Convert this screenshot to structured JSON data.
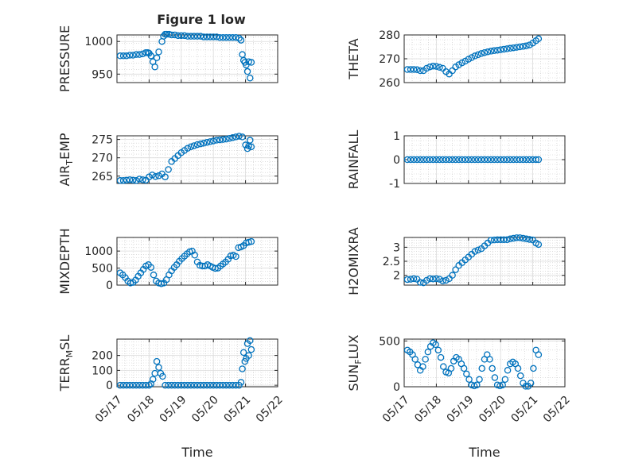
{
  "title": "Figure 1 low",
  "colors": {
    "marker": "#0072BD",
    "axis": "#262626",
    "grid": "#c8c8c8"
  },
  "chart_data": [
    {
      "type": "scatter",
      "panel": "left-1",
      "ylabel": "PRESSURE",
      "ylim": [
        937,
        1010
      ],
      "yticks": [
        950,
        1000
      ],
      "ytick_labels": [
        "950",
        "1000"
      ],
      "xlim": [
        0,
        5
      ],
      "show_xticklabels": false,
      "xlabel": "",
      "grid": true,
      "x": [
        0.1,
        0.2,
        0.3,
        0.4,
        0.5,
        0.6,
        0.7,
        0.8,
        0.9,
        0.96,
        1.0,
        1.06,
        1.12,
        1.18,
        1.24,
        1.3,
        1.4,
        1.45,
        1.5,
        1.55,
        1.62,
        1.7,
        1.8,
        1.9,
        2.0,
        2.1,
        2.2,
        2.3,
        2.4,
        2.5,
        2.6,
        2.7,
        2.8,
        2.9,
        3.0,
        3.1,
        3.2,
        3.3,
        3.4,
        3.5,
        3.6,
        3.7,
        3.8,
        3.86,
        3.9,
        3.94,
        3.98,
        4.02,
        4.06,
        4.1,
        4.14,
        4.18
      ],
      "y": [
        978,
        978,
        978,
        979,
        979,
        980,
        980,
        981,
        983,
        983,
        982,
        978,
        969,
        961,
        975,
        984,
        1000,
        1008,
        1011,
        1011,
        1011,
        1010,
        1010,
        1009,
        1009,
        1009,
        1008,
        1008,
        1008,
        1008,
        1008,
        1007,
        1007,
        1007,
        1007,
        1007,
        1006,
        1006,
        1006,
        1006,
        1006,
        1006,
        1005,
        1002,
        980,
        971,
        968,
        964,
        954,
        969,
        944,
        968
      ]
    },
    {
      "type": "scatter",
      "panel": "right-1",
      "ylabel": "THETA",
      "ylim": [
        260,
        280
      ],
      "yticks": [
        260,
        270,
        280
      ],
      "ytick_labels": [
        "260",
        "270",
        "280"
      ],
      "xlim": [
        0,
        5
      ],
      "show_xticklabels": false,
      "xlabel": "",
      "grid": true,
      "x": [
        0.1,
        0.2,
        0.3,
        0.4,
        0.5,
        0.6,
        0.7,
        0.8,
        0.9,
        1.0,
        1.1,
        1.2,
        1.3,
        1.4,
        1.5,
        1.6,
        1.7,
        1.8,
        1.9,
        2.0,
        2.1,
        2.2,
        2.3,
        2.4,
        2.5,
        2.6,
        2.7,
        2.8,
        2.9,
        3.0,
        3.1,
        3.2,
        3.3,
        3.4,
        3.5,
        3.6,
        3.7,
        3.8,
        3.9,
        4.0,
        4.1,
        4.18
      ],
      "y": [
        265.5,
        265.5,
        265.5,
        265.4,
        265.0,
        265.0,
        266.0,
        266.6,
        266.9,
        266.8,
        266.4,
        266.0,
        264.6,
        263.6,
        265.0,
        266.6,
        267.5,
        268.3,
        269.0,
        269.8,
        270.5,
        271.2,
        271.7,
        272.2,
        272.6,
        272.9,
        273.2,
        273.4,
        273.6,
        273.8,
        274.0,
        274.2,
        274.4,
        274.6,
        274.8,
        275.0,
        275.2,
        275.4,
        275.8,
        276.6,
        277.6,
        278.4
      ]
    },
    {
      "type": "scatter",
      "panel": "left-2",
      "ylabel": "AIR_TEMP",
      "ylim": [
        263,
        276
      ],
      "yticks": [
        265,
        270,
        275
      ],
      "ytick_labels": [
        "265",
        "270",
        "275"
      ],
      "xlim": [
        0,
        5
      ],
      "show_xticklabels": false,
      "xlabel": "",
      "grid": true,
      "x": [
        0.1,
        0.2,
        0.3,
        0.4,
        0.5,
        0.6,
        0.7,
        0.8,
        0.9,
        1.0,
        1.1,
        1.2,
        1.3,
        1.4,
        1.5,
        1.6,
        1.7,
        1.8,
        1.9,
        2.0,
        2.1,
        2.2,
        2.3,
        2.4,
        2.5,
        2.6,
        2.7,
        2.8,
        2.9,
        3.0,
        3.1,
        3.2,
        3.3,
        3.4,
        3.5,
        3.6,
        3.7,
        3.8,
        3.9,
        4.0,
        4.06,
        4.1,
        4.14,
        4.18
      ],
      "y": [
        263.8,
        263.8,
        263.9,
        264.0,
        263.9,
        263.8,
        264.2,
        264.0,
        263.9,
        264.8,
        265.3,
        264.9,
        265.1,
        265.6,
        264.8,
        266.8,
        269.0,
        269.8,
        270.6,
        271.4,
        272.0,
        272.6,
        273.0,
        273.3,
        273.6,
        273.8,
        274.0,
        274.2,
        274.4,
        274.6,
        274.8,
        274.9,
        275.0,
        275.1,
        275.3,
        275.5,
        275.7,
        275.9,
        275.7,
        273.5,
        272.5,
        273.2,
        274.8,
        273.0
      ]
    },
    {
      "type": "scatter",
      "panel": "right-2",
      "ylabel": "RAINFALL",
      "ylim": [
        -1,
        1
      ],
      "yticks": [
        -1,
        0,
        1
      ],
      "ytick_labels": [
        "-1",
        "0",
        "1"
      ],
      "xlim": [
        0,
        5
      ],
      "show_xticklabels": false,
      "xlabel": "",
      "grid": true,
      "x": [
        0.1,
        0.2,
        0.3,
        0.4,
        0.5,
        0.6,
        0.7,
        0.8,
        0.9,
        1.0,
        1.1,
        1.2,
        1.3,
        1.4,
        1.5,
        1.6,
        1.7,
        1.8,
        1.9,
        2.0,
        2.1,
        2.2,
        2.3,
        2.4,
        2.5,
        2.6,
        2.7,
        2.8,
        2.9,
        3.0,
        3.1,
        3.2,
        3.3,
        3.4,
        3.5,
        3.6,
        3.7,
        3.8,
        3.9,
        4.0,
        4.1,
        4.18
      ],
      "y": [
        0,
        0,
        0,
        0,
        0,
        0,
        0,
        0,
        0,
        0,
        0,
        0,
        0,
        0,
        0,
        0,
        0,
        0,
        0,
        0,
        0,
        0,
        0,
        0,
        0,
        0,
        0,
        0,
        0,
        0,
        0,
        0,
        0,
        0,
        0,
        0,
        0,
        0,
        0,
        0,
        0,
        0
      ]
    },
    {
      "type": "scatter",
      "panel": "left-3",
      "ylabel": "MIXDEPTH",
      "ylim": [
        0,
        1400
      ],
      "yticks": [
        0,
        500,
        1000
      ],
      "ytick_labels": [
        "0",
        "500",
        "1000"
      ],
      "xlim": [
        0,
        5
      ],
      "show_xticklabels": false,
      "xlabel": "",
      "grid": true,
      "x": [
        0.1,
        0.18,
        0.26,
        0.34,
        0.42,
        0.5,
        0.58,
        0.66,
        0.74,
        0.82,
        0.9,
        0.98,
        1.06,
        1.14,
        1.22,
        1.3,
        1.38,
        1.46,
        1.54,
        1.62,
        1.7,
        1.78,
        1.86,
        1.94,
        2.02,
        2.1,
        2.18,
        2.26,
        2.34,
        2.42,
        2.5,
        2.58,
        2.66,
        2.74,
        2.82,
        2.9,
        2.98,
        3.06,
        3.14,
        3.22,
        3.3,
        3.38,
        3.46,
        3.54,
        3.62,
        3.7,
        3.78,
        3.86,
        3.94,
        4.02,
        4.1,
        4.18
      ],
      "y": [
        360,
        300,
        220,
        120,
        60,
        80,
        150,
        260,
        360,
        460,
        560,
        600,
        520,
        300,
        120,
        60,
        40,
        60,
        160,
        300,
        420,
        520,
        600,
        700,
        780,
        850,
        920,
        980,
        1000,
        880,
        680,
        580,
        560,
        560,
        600,
        560,
        520,
        490,
        500,
        560,
        620,
        680,
        760,
        860,
        880,
        840,
        1100,
        1120,
        1160,
        1240,
        1260,
        1280
      ]
    },
    {
      "type": "scatter",
      "panel": "right-3",
      "ylabel": "H2OMIXRA",
      "ylim": [
        1.65,
        3.35
      ],
      "yticks": [
        2,
        2.5,
        3
      ],
      "ytick_labels": [
        "2",
        "2.5",
        "3"
      ],
      "xlim": [
        0,
        5
      ],
      "show_xticklabels": false,
      "xlabel": "",
      "grid": true,
      "x": [
        0.1,
        0.2,
        0.3,
        0.4,
        0.5,
        0.6,
        0.7,
        0.8,
        0.9,
        1.0,
        1.1,
        1.2,
        1.3,
        1.4,
        1.5,
        1.6,
        1.7,
        1.8,
        1.9,
        2.0,
        2.1,
        2.2,
        2.3,
        2.4,
        2.5,
        2.6,
        2.7,
        2.8,
        2.9,
        3.0,
        3.1,
        3.2,
        3.3,
        3.4,
        3.5,
        3.6,
        3.7,
        3.8,
        3.9,
        4.0,
        4.1,
        4.18
      ],
      "y": [
        1.85,
        1.86,
        1.88,
        1.86,
        1.75,
        1.73,
        1.82,
        1.88,
        1.87,
        1.88,
        1.86,
        1.8,
        1.82,
        1.88,
        2.0,
        2.2,
        2.35,
        2.45,
        2.55,
        2.65,
        2.75,
        2.85,
        2.9,
        2.95,
        3.05,
        3.15,
        3.25,
        3.26,
        3.27,
        3.27,
        3.27,
        3.27,
        3.3,
        3.32,
        3.34,
        3.34,
        3.32,
        3.3,
        3.28,
        3.26,
        3.15,
        3.1
      ]
    },
    {
      "type": "scatter",
      "panel": "left-4",
      "ylabel": "TERR_MSL",
      "ylim": [
        -10,
        310
      ],
      "yticks": [
        0,
        100,
        200
      ],
      "ytick_labels": [
        "0",
        "100",
        "200"
      ],
      "xlim": [
        0,
        5
      ],
      "show_xticklabels": true,
      "xlabel": "Time",
      "grid": true,
      "xticks": [
        0,
        1,
        2,
        3,
        4,
        5
      ],
      "xtick_labels": [
        "05/17",
        "05/18",
        "05/19",
        "05/20",
        "05/21",
        "05/22"
      ],
      "x": [
        0.1,
        0.2,
        0.3,
        0.4,
        0.5,
        0.6,
        0.7,
        0.8,
        0.9,
        1.0,
        1.06,
        1.12,
        1.18,
        1.24,
        1.3,
        1.36,
        1.42,
        1.5,
        1.6,
        1.7,
        1.8,
        1.9,
        2.0,
        2.1,
        2.2,
        2.3,
        2.4,
        2.5,
        2.6,
        2.7,
        2.8,
        2.9,
        3.0,
        3.1,
        3.2,
        3.3,
        3.4,
        3.5,
        3.6,
        3.7,
        3.8,
        3.86,
        3.9,
        3.94,
        3.98,
        4.02,
        4.06,
        4.1,
        4.14,
        4.18
      ],
      "y": [
        0,
        0,
        0,
        0,
        0,
        0,
        0,
        0,
        0,
        0,
        10,
        40,
        80,
        160,
        120,
        80,
        60,
        0,
        0,
        0,
        0,
        0,
        0,
        0,
        0,
        0,
        0,
        0,
        0,
        0,
        0,
        0,
        0,
        0,
        0,
        0,
        0,
        0,
        0,
        0,
        0,
        20,
        110,
        220,
        160,
        180,
        280,
        200,
        300,
        240
      ]
    },
    {
      "type": "scatter",
      "panel": "right-4",
      "ylabel": "SUN_FLUX",
      "ylim": [
        0,
        520
      ],
      "yticks": [
        0,
        500
      ],
      "ytick_labels": [
        "0",
        "500"
      ],
      "xlim": [
        0,
        5
      ],
      "show_xticklabels": true,
      "xlabel": "Time",
      "grid": true,
      "xticks": [
        0,
        1,
        2,
        3,
        4,
        5
      ],
      "xtick_labels": [
        "05/17",
        "05/18",
        "05/19",
        "05/20",
        "05/21",
        "05/22"
      ],
      "x": [
        0.1,
        0.18,
        0.26,
        0.34,
        0.42,
        0.5,
        0.58,
        0.66,
        0.74,
        0.82,
        0.9,
        0.98,
        1.06,
        1.14,
        1.22,
        1.3,
        1.38,
        1.46,
        1.54,
        1.62,
        1.7,
        1.78,
        1.86,
        1.94,
        2.02,
        2.1,
        2.18,
        2.26,
        2.34,
        2.42,
        2.5,
        2.58,
        2.66,
        2.74,
        2.82,
        2.9,
        2.98,
        3.06,
        3.14,
        3.22,
        3.3,
        3.38,
        3.46,
        3.54,
        3.62,
        3.7,
        3.78,
        3.86,
        3.94,
        4.02,
        4.1,
        4.18
      ],
      "y": [
        400,
        380,
        350,
        300,
        240,
        180,
        220,
        300,
        380,
        440,
        480,
        460,
        400,
        320,
        220,
        160,
        150,
        200,
        280,
        320,
        300,
        250,
        200,
        140,
        80,
        20,
        10,
        20,
        80,
        200,
        300,
        350,
        300,
        200,
        100,
        20,
        10,
        20,
        80,
        180,
        250,
        270,
        250,
        200,
        120,
        40,
        5,
        5,
        40,
        200,
        400,
        350
      ]
    }
  ]
}
